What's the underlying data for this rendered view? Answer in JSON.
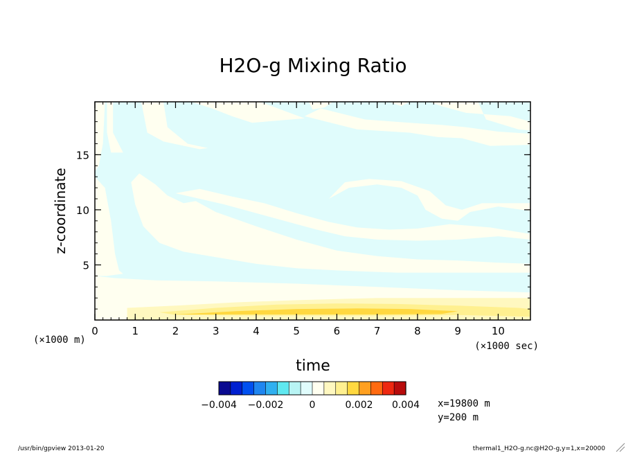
{
  "chart_data": {
    "type": "heatmap",
    "title": "H2O-g Mixing Ratio",
    "xlabel": "time",
    "ylabel": "z-coordinate",
    "x_unit": "(×1000 sec)",
    "y_unit": "(×1000 m)",
    "xlim": [
      0,
      10.8
    ],
    "ylim": [
      0,
      19.8
    ],
    "x_ticks": [
      {
        "v": 0,
        "label": "0"
      },
      {
        "v": 1,
        "label": "1"
      },
      {
        "v": 2,
        "label": "2"
      },
      {
        "v": 3,
        "label": "3"
      },
      {
        "v": 4,
        "label": "4"
      },
      {
        "v": 5,
        "label": "5"
      },
      {
        "v": 6,
        "label": "6"
      },
      {
        "v": 7,
        "label": "7"
      },
      {
        "v": 8,
        "label": "8"
      },
      {
        "v": 9,
        "label": "9"
      },
      {
        "v": 10,
        "label": "10"
      }
    ],
    "y_ticks": [
      {
        "v": 5,
        "label": "5"
      },
      {
        "v": 10,
        "label": "10"
      },
      {
        "v": 15,
        "label": "15"
      }
    ],
    "colorbar": {
      "colors": [
        "#0a0a90",
        "#0020d0",
        "#0050f0",
        "#1f86f0",
        "#30b0f0",
        "#5fe8f0",
        "#b8f4f4",
        "#e0fcfc",
        "#fffff0",
        "#fff8c0",
        "#fff090",
        "#ffd840",
        "#ffa020",
        "#ff6a10",
        "#ee2810",
        "#b80c0c"
      ],
      "tick_labels": [
        {
          "v": -0.004,
          "label": "−0.004"
        },
        {
          "v": -0.002,
          "label": "−0.002"
        },
        {
          "v": 0,
          "label": "0"
        },
        {
          "v": 0.002,
          "label": "0.002"
        },
        {
          "v": 0.004,
          "label": "0.004"
        }
      ],
      "range": [
        -0.004,
        0.004
      ]
    },
    "regions": [
      {
        "name": "near-surface positive band",
        "z": [
          0,
          2.2
        ],
        "t": [
          0,
          10.8
        ],
        "level": "0.0005"
      },
      {
        "name": "peak positive core",
        "z": [
          0.4,
          1.0
        ],
        "t": [
          3,
          8
        ],
        "level": "0.001–0.0015"
      },
      {
        "name": "upper alternating bands",
        "z": [
          2.2,
          19.8
        ],
        "t": [
          0,
          10.8
        ],
        "level": "±0.0005"
      }
    ]
  },
  "annotations": {
    "position_x": "x=19800 m",
    "position_y": "y=200 m"
  },
  "footer": {
    "left": "/usr/bin/gpview  2013-01-20",
    "right": "thermal1_H2O-g.nc@H2O-g,y=1,x=20000"
  },
  "colors": {
    "neg_weak": "#e0fcfc",
    "pos_weak": "#fffff0",
    "pos_1": "#fff8c0",
    "pos_2": "#fff090",
    "pos_3": "#ffd840"
  }
}
